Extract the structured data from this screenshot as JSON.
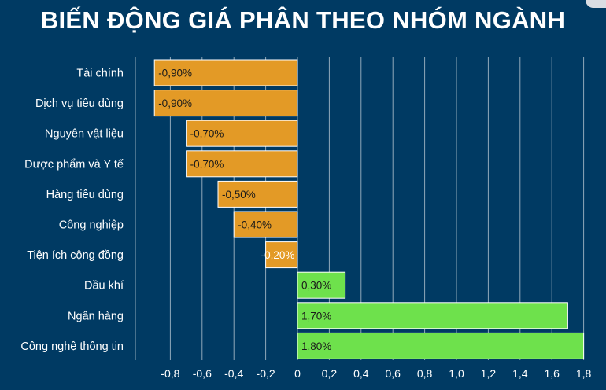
{
  "title": "BIẾN ĐỘNG GIÁ PHÂN THEO NHÓM NGÀNH",
  "colors": {
    "background": "#003a63",
    "negative_bar": "#e39a26",
    "positive_bar": "#6ee14c",
    "grid": "#cfd8e0",
    "text": "#ffffff",
    "bar_label": "#1a1a1a"
  },
  "chart_data": {
    "type": "bar",
    "orientation": "horizontal",
    "categories": [
      "Tài chính",
      "Dịch vụ tiêu dùng",
      "Nguyên vật liệu",
      "Dược phẩm và Y tế",
      "Hàng tiêu dùng",
      "Công nghiệp",
      "Tiện ích cộng đồng",
      "Dầu khí",
      "Ngân hàng",
      "Công nghệ thông tin"
    ],
    "values": [
      -0.9,
      -0.9,
      -0.7,
      -0.7,
      -0.5,
      -0.4,
      -0.2,
      0.3,
      1.7,
      1.8
    ],
    "data_labels": [
      "-0,90%",
      "-0,90%",
      "-0,70%",
      "-0,70%",
      "-0,50%",
      "-0,40%",
      "-0,20%",
      "0,30%",
      "1,70%",
      "1,80%"
    ],
    "xlim": [
      -0.9,
      1.8
    ],
    "xticks": [
      -0.8,
      -0.6,
      -0.4,
      -0.2,
      0,
      0.2,
      0.4,
      0.6,
      0.8,
      1.0,
      1.2,
      1.4,
      1.6,
      1.8
    ],
    "xtick_labels": [
      "-0,8",
      "-0,6",
      "-0,4",
      "-0,2",
      "0",
      "0,2",
      "0,4",
      "0,6",
      "0,8",
      "1,0",
      "1,2",
      "1,4",
      "1,6",
      "1,8"
    ],
    "grid": "vertical",
    "title": "BIẾN ĐỘNG GIÁ PHÂN THEO NHÓM NGÀNH",
    "xlabel": "",
    "ylabel": ""
  }
}
